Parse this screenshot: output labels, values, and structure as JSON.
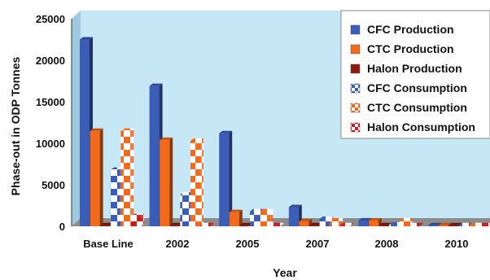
{
  "chart_data": {
    "type": "bar",
    "xlabel": "Year",
    "ylabel": "Phase-out in ODP Tonnes",
    "ylim": [
      0,
      25000
    ],
    "yticks": [
      "0",
      "5000",
      "10000",
      "15000",
      "20000",
      "25000"
    ],
    "categories": [
      "Base Line",
      "2002",
      "2005",
      "2007",
      "2008",
      "2010"
    ],
    "grid": false,
    "legend_position": "top-right",
    "style": "3d-bars",
    "background_color": "#c6e8f6",
    "floor_color": "#8c8c8c",
    "series": [
      {
        "name": "CFC Production",
        "color": "#3b5db8",
        "pattern": "solid",
        "values": [
          22500,
          16900,
          11200,
          2300,
          700,
          0
        ]
      },
      {
        "name": "CTC Production",
        "color": "#f26a1b",
        "pattern": "solid",
        "values": [
          11500,
          10400,
          1700,
          600,
          700,
          100
        ]
      },
      {
        "name": "Halon Production",
        "color": "#8b1a12",
        "pattern": "solid",
        "values": [
          0,
          0,
          0,
          0,
          0,
          0
        ]
      },
      {
        "name": "CFC Consumption",
        "color": "#3b5db8",
        "pattern": "checker",
        "values": [
          6800,
          3800,
          1800,
          900,
          200,
          0
        ]
      },
      {
        "name": "CTC Consumption",
        "color": "#f26a1b",
        "pattern": "checker",
        "values": [
          11500,
          10300,
          1800,
          700,
          700,
          0
        ]
      },
      {
        "name": "Halon Consumption",
        "color": "#cc1b1b",
        "pattern": "checker",
        "values": [
          1200,
          0,
          0,
          0,
          0,
          0
        ]
      }
    ]
  }
}
